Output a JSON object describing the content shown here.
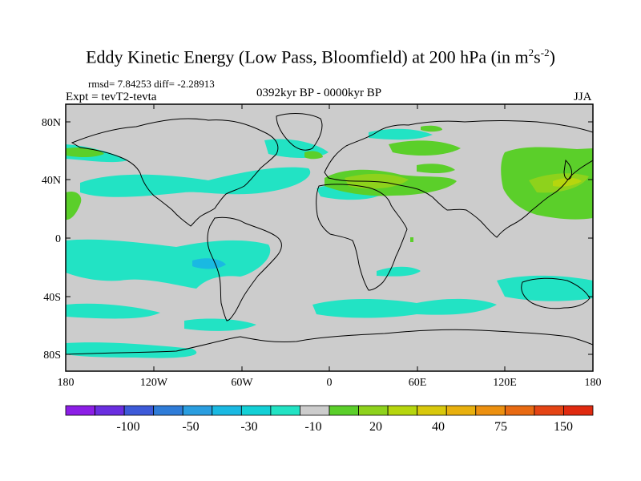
{
  "title": {
    "main": "Eddy Kinetic Energy (Low Pass, Bloomfield) at 200 hPa (in m",
    "sup1": "2",
    "mid": "s",
    "sup2": "-2",
    "end": ")"
  },
  "stats": "rmsd= 7.84253 diff= -2.28913",
  "experiment": "Expt = tevT2-tevta",
  "period": "0392kyr BP - 0000kyr BP",
  "season": "JJA",
  "axes": {
    "lat_labels": [
      "80N",
      "40N",
      "0",
      "40S",
      "80S"
    ],
    "lon_labels": [
      "180",
      "120W",
      "60W",
      "0",
      "60E",
      "120E",
      "180"
    ]
  },
  "colorbar": {
    "colors": [
      "#8c1ee6",
      "#6a2ee0",
      "#3d5ad8",
      "#2f7cd8",
      "#2a9ee0",
      "#1ab9e2",
      "#13d0d6",
      "#22e3c4",
      "#cccccc",
      "#5bcf2a",
      "#8ed21c",
      "#b6d60e",
      "#d8c80c",
      "#e8b00e",
      "#ec9010",
      "#e86a12",
      "#e44414",
      "#e02a10"
    ],
    "labels": [
      "-100",
      "-50",
      "-30",
      "-10",
      "20",
      "40",
      "75",
      "150"
    ]
  },
  "map_colors": {
    "land_bg": "#cccccc",
    "cyan": "#22e3c4",
    "green": "#5bcf2a",
    "lime": "#8ed21c",
    "yellowgreen": "#b6d60e",
    "blue": "#1ab9e2"
  }
}
